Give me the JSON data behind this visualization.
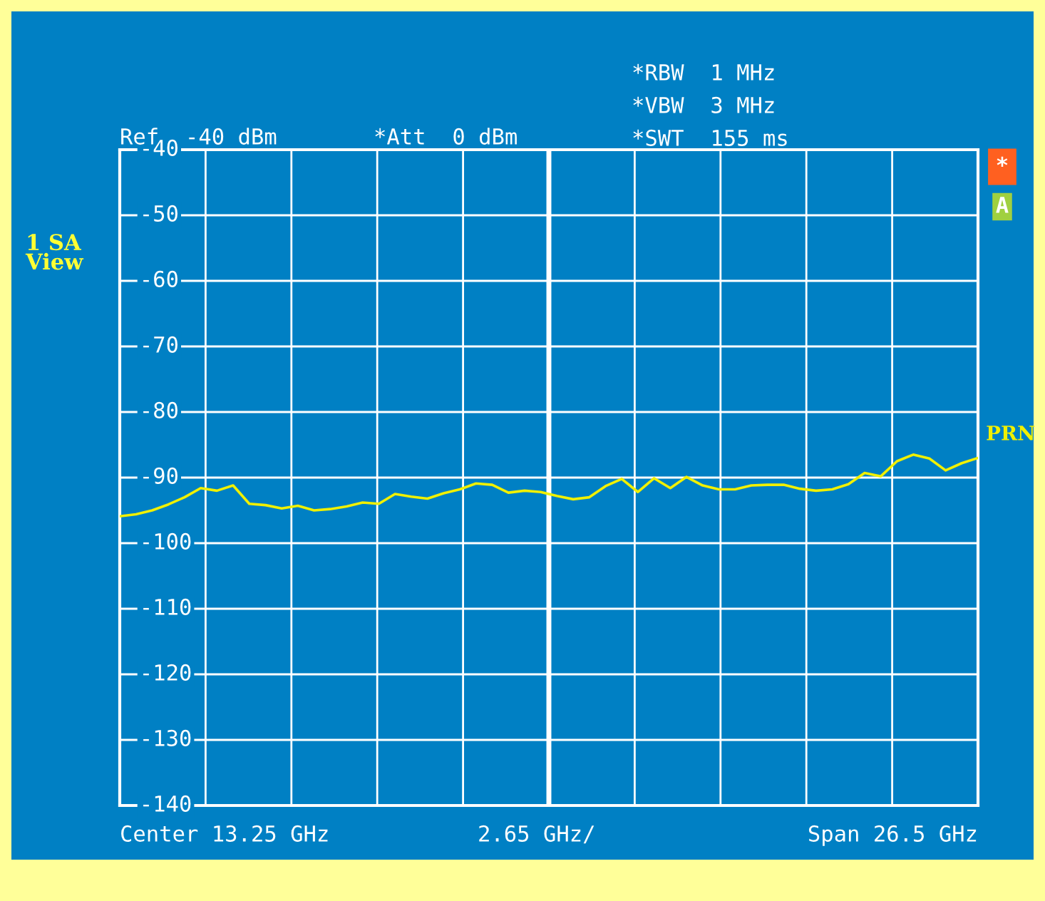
{
  "chart_data": {
    "type": "line",
    "annotations": [
      "Ref  -40 dBm",
      "*Att  0 dBm",
      "*RBW  1 MHz",
      "*VBW  3 MHz",
      "*SWT  155 ms",
      "1 SA\nView",
      "*",
      "A",
      "Center 13.25 GHz",
      "2.65 GHz/",
      "Span 26.5 GHz"
    ],
    "categories": [
      null,
      null,
      null,
      null,
      null,
      null,
      null,
      null,
      null,
      null,
      null,
      null,
      null,
      null,
      null,
      null,
      null,
      null,
      null,
      null,
      null,
      null,
      null,
      null,
      null,
      null,
      null,
      null,
      null,
      null,
      null,
      null,
      null,
      null,
      null,
      null,
      null,
      null,
      null,
      null,
      null,
      null,
      null,
      null,
      null,
      null,
      null,
      null,
      null,
      null,
      null,
      null,
      null,
      null
    ],
    "series": [
      {
        "name": "PRN",
        "color": "#f0f000",
        "values": [
          -95.9,
          -95.6,
          -95,
          -94.1,
          -93,
          -91.6,
          -92,
          -91.2,
          -94,
          -94.2,
          -94.7,
          -94.3,
          -95,
          -94.8,
          -94.4,
          -93.8,
          -94,
          -92.5,
          -92.9,
          -93.2,
          -92.4,
          -91.8,
          -90.9,
          -91.1,
          -92.3,
          -92,
          -92.2,
          -92.8,
          -93.3,
          -93,
          -91.3,
          -90.2,
          -92.2,
          -90.1,
          -91.6,
          -89.9,
          -91.2,
          -91.8,
          -91.8,
          -91.2,
          -91.1,
          -91.1,
          -91.7,
          -92,
          -91.8,
          -91,
          -89.3,
          -89.8,
          -87.5,
          -86.5,
          -87.1,
          -88.9,
          -87.8,
          -87
        ]
      }
    ],
    "ylim": [
      -140,
      -40
    ],
    "yticks": [
      {
        "value": -40,
        "label": "-40"
      },
      {
        "value": -50,
        "label": "-50"
      },
      {
        "value": -60,
        "label": "-60"
      },
      {
        "value": -70,
        "label": "-70"
      },
      {
        "value": -80,
        "label": "-80"
      },
      {
        "value": -90,
        "label": "-90"
      },
      {
        "value": -100,
        "label": "-100"
      },
      {
        "value": -110,
        "label": "-110"
      },
      {
        "value": -120,
        "label": "-120"
      },
      {
        "value": -130,
        "label": "-130"
      },
      {
        "value": -140,
        "label": "-140"
      }
    ],
    "grid": true,
    "legend": false,
    "line_style": "solid",
    "marker": "none"
  }
}
